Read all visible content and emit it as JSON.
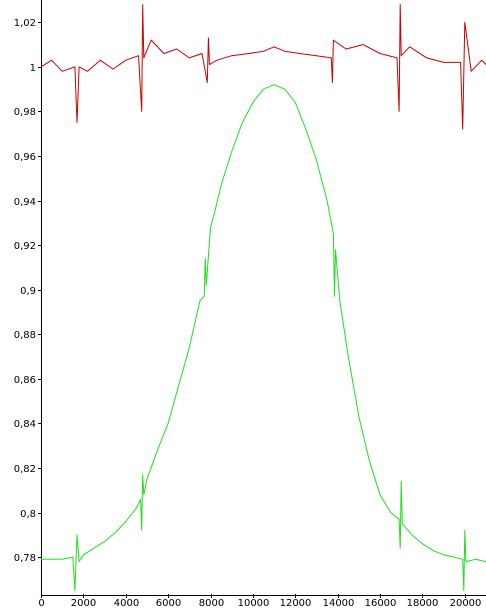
{
  "chart_data": {
    "type": "line",
    "title": "",
    "xlabel": "",
    "ylabel": "",
    "xlim": [
      0,
      21000
    ],
    "ylim": [
      0.763,
      1.03
    ],
    "grid": false,
    "legend": "none",
    "x_ticks": [
      0,
      2000,
      4000,
      6000,
      8000,
      10000,
      12000,
      14000,
      16000,
      18000,
      20000
    ],
    "x_tick_labels": [
      "0",
      "2000",
      "4000",
      "6000",
      "8000",
      "10000",
      "12000",
      "14000",
      "16000",
      "18000",
      "20000"
    ],
    "y_ticks": [
      0.78,
      0.8,
      0.82,
      0.84,
      0.86,
      0.88,
      0.9,
      0.92,
      0.94,
      0.96,
      0.98,
      1.0,
      1.02
    ],
    "y_tick_labels": [
      "0,78",
      "0,8",
      "0,82",
      "0,84",
      "0,86",
      "0,88",
      "0,9",
      "0,92",
      "0,94",
      "0,96",
      "0,98",
      "1",
      "1,02"
    ],
    "series": [
      {
        "color": "#cc0000",
        "x": [
          0,
          500,
          1000,
          1600,
          1700,
          1800,
          2200,
          2800,
          3400,
          4000,
          4600,
          4750,
          4800,
          4850,
          5200,
          5800,
          6400,
          7000,
          7600,
          7850,
          7900,
          7950,
          8300,
          9000,
          9800,
          10500,
          11000,
          11500,
          12200,
          13000,
          13700,
          13750,
          13800,
          14400,
          15200,
          16000,
          16800,
          16900,
          16950,
          17000,
          17400,
          18200,
          19000,
          19800,
          19900,
          20000,
          20300,
          20800,
          21000
        ],
        "y": [
          1.0,
          1.003,
          0.998,
          1.0,
          0.975,
          1.0,
          0.998,
          1.003,
          0.999,
          1.003,
          1.005,
          0.98,
          1.028,
          1.004,
          1.012,
          1.006,
          1.008,
          1.004,
          1.006,
          0.993,
          1.013,
          1.001,
          1.003,
          1.005,
          1.006,
          1.007,
          1.009,
          1.007,
          1.006,
          1.005,
          1.004,
          0.993,
          1.012,
          1.008,
          1.01,
          1.006,
          1.004,
          0.98,
          1.028,
          1.005,
          1.009,
          1.004,
          1.002,
          1.002,
          0.972,
          1.02,
          0.998,
          1.003,
          1.001
        ]
      },
      {
        "color": "#22dd22",
        "x": [
          0,
          500,
          1000,
          1500,
          1600,
          1700,
          1800,
          2000,
          2500,
          3000,
          3500,
          4000,
          4500,
          4700,
          4750,
          4800,
          4850,
          5000,
          5500,
          6000,
          6500,
          7000,
          7500,
          7700,
          7750,
          7800,
          8000,
          8200,
          8500,
          9000,
          9500,
          10000,
          10500,
          11000,
          11500,
          12000,
          12500,
          13000,
          13500,
          13800,
          13850,
          13900,
          14100,
          14500,
          15000,
          15500,
          16000,
          16500,
          16900,
          16950,
          17000,
          17050,
          17500,
          18000,
          18500,
          19000,
          19500,
          19900,
          19950,
          20000,
          20050,
          20500,
          21000
        ],
        "y": [
          0.779,
          0.779,
          0.779,
          0.78,
          0.765,
          0.79,
          0.778,
          0.781,
          0.784,
          0.787,
          0.791,
          0.796,
          0.802,
          0.806,
          0.792,
          0.817,
          0.808,
          0.815,
          0.828,
          0.84,
          0.857,
          0.874,
          0.895,
          0.897,
          0.914,
          0.902,
          0.928,
          0.935,
          0.947,
          0.962,
          0.975,
          0.984,
          0.99,
          0.992,
          0.99,
          0.984,
          0.972,
          0.958,
          0.94,
          0.925,
          0.897,
          0.918,
          0.895,
          0.87,
          0.843,
          0.823,
          0.808,
          0.8,
          0.797,
          0.784,
          0.814,
          0.795,
          0.79,
          0.786,
          0.783,
          0.781,
          0.78,
          0.779,
          0.765,
          0.792,
          0.778,
          0.779,
          0.778
        ]
      }
    ]
  }
}
